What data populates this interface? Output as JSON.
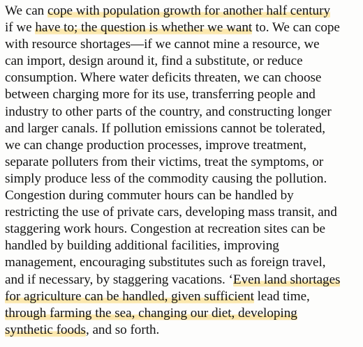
{
  "colors": {
    "text": "#141414",
    "highlight": "#fad66e",
    "background": "#fdfdfc"
  },
  "passage": {
    "lines": [
      {
        "segments": [
          {
            "text": "We can ",
            "highlight": false
          },
          {
            "text": "cope with population growth for another half century",
            "highlight": true
          }
        ]
      },
      {
        "segments": [
          {
            "text": "if we ",
            "highlight": false
          },
          {
            "text": "have to; the question is whether we want",
            "highlight": true
          },
          {
            "text": " to. We can cope",
            "highlight": false
          }
        ]
      },
      {
        "segments": [
          {
            "text": "with resource shortages—if we cannot mine a resource, we",
            "highlight": false
          }
        ]
      },
      {
        "segments": [
          {
            "text": "can import, design around it, find a substitute, or reduce",
            "highlight": false
          }
        ]
      },
      {
        "segments": [
          {
            "text": "consumption. Where water deficits threaten, we can choose",
            "highlight": false
          }
        ]
      },
      {
        "segments": [
          {
            "text": "between charging more for its use, transferring people and",
            "highlight": false
          }
        ]
      },
      {
        "segments": [
          {
            "text": "industry to other parts of the country, and constructing longer",
            "highlight": false
          }
        ]
      },
      {
        "segments": [
          {
            "text": "and larger canals. If pollution emissions cannot be tolerated,",
            "highlight": false
          }
        ]
      },
      {
        "segments": [
          {
            "text": "we can change production processes, improve treatment,",
            "highlight": false
          }
        ]
      },
      {
        "segments": [
          {
            "text": "separate polluters from their victims, treat the symptoms, or",
            "highlight": false
          }
        ]
      },
      {
        "segments": [
          {
            "text": "simply produce less of the commodity causing the pollution.",
            "highlight": false
          }
        ]
      },
      {
        "segments": [
          {
            "text": "Congestion during commuter hours can be handled by",
            "highlight": false
          }
        ]
      },
      {
        "segments": [
          {
            "text": "restricting the use of private cars, developing mass transit, and",
            "highlight": false
          }
        ]
      },
      {
        "segments": [
          {
            "text": "staggering work hours. Congestion at recreation sites can be",
            "highlight": false
          }
        ]
      },
      {
        "segments": [
          {
            "text": "handled by building additional facilities, improving",
            "highlight": false
          }
        ]
      },
      {
        "segments": [
          {
            "text": "management, encouraging substitutes such as foreign travel,",
            "highlight": false
          }
        ]
      },
      {
        "segments": [
          {
            "text": "and if necessary, by staggering vacations. ‘",
            "highlight": false
          },
          {
            "text": "Even land shortages",
            "highlight": true
          }
        ]
      },
      {
        "segments": [
          {
            "text": "for agriculture can be handled, given sufficient",
            "highlight": true
          },
          {
            "text": " lead time,",
            "highlight": false
          }
        ]
      },
      {
        "segments": [
          {
            "text": "through farming the sea, changing our diet, developing",
            "highlight": true
          }
        ]
      },
      {
        "segments": [
          {
            "text": "synthetic foods",
            "highlight": true
          },
          {
            "text": ", and so forth.",
            "highlight": false
          }
        ]
      }
    ]
  }
}
